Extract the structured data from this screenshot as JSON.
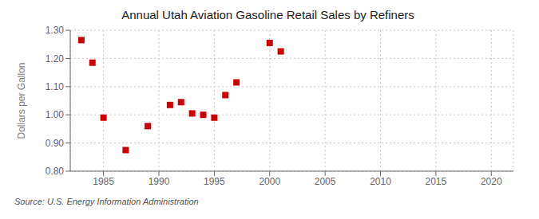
{
  "chart_data": {
    "type": "scatter",
    "title": "Annual Utah Aviation Gasoline Retail Sales by Refiners",
    "y_label": "Dollars per Gallon",
    "annotations": [
      "Source: U.S. Energy Information Administration"
    ],
    "x": [
      1983,
      1984,
      1985,
      1987,
      1989,
      1991,
      1992,
      1993,
      1994,
      1995,
      1996,
      1997,
      2000,
      2001
    ],
    "values": [
      1.265,
      1.185,
      0.99,
      0.875,
      0.96,
      1.035,
      1.045,
      1.005,
      1.0,
      0.99,
      1.07,
      1.115,
      1.255,
      1.225
    ],
    "color": "#cc0000",
    "marker": "square",
    "xlim": [
      1982,
      2022
    ],
    "ylim": [
      0.8,
      1.3
    ],
    "xticks": [
      1985,
      1990,
      1995,
      2000,
      2005,
      2010,
      2015,
      2020
    ],
    "yticks": [
      {
        "value": 0.8,
        "label": "0.80"
      },
      {
        "value": 0.9,
        "label": "0.90"
      },
      {
        "value": 1.0,
        "label": "1.00"
      },
      {
        "value": 1.1,
        "label": "1.10"
      },
      {
        "value": 1.2,
        "label": "1.20"
      },
      {
        "value": 1.3,
        "label": "1.30"
      }
    ],
    "grid": true
  }
}
